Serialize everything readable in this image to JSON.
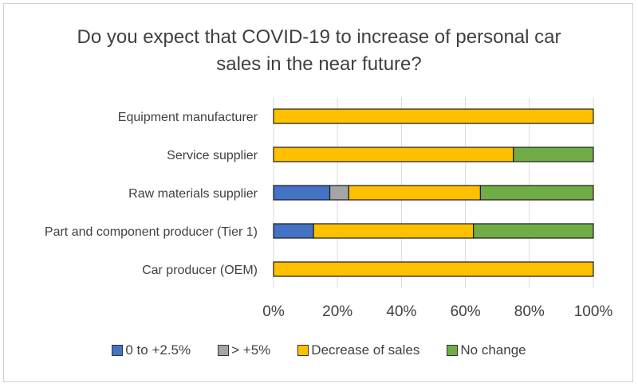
{
  "chart_data": {
    "type": "bar",
    "orientation": "horizontal",
    "stacked": "percent",
    "title": "Do you expect that COVID-19 to increase of personal car sales in the near future?",
    "title_lines": [
      "Do you expect that COVID-19 to increase of personal car",
      "sales in the near future?"
    ],
    "categories": [
      "Equipment  manufacturer",
      "Service supplier",
      "Raw materials supplier",
      "Part and component  producer (Tier 1)",
      "Car producer  (OEM)"
    ],
    "series": [
      {
        "name": "0  to +2.5%",
        "color": "#4472C4",
        "values": [
          0,
          0,
          17.6,
          12.5,
          0
        ]
      },
      {
        "name": ">  +5%",
        "color": "#A5A5A5",
        "values": [
          0,
          0,
          5.9,
          0,
          0
        ]
      },
      {
        "name": "Decrease of sales",
        "color": "#FFC000",
        "values": [
          100,
          75,
          41.2,
          50,
          100
        ]
      },
      {
        "name": "No change",
        "color": "#70AD47",
        "values": [
          0,
          25,
          35.3,
          37.5,
          0
        ]
      }
    ],
    "xlim": [
      0,
      100
    ],
    "xticks": [
      "0%",
      "20%",
      "40%",
      "60%",
      "80%",
      "100%"
    ],
    "grid": true,
    "legend_position": "bottom"
  }
}
